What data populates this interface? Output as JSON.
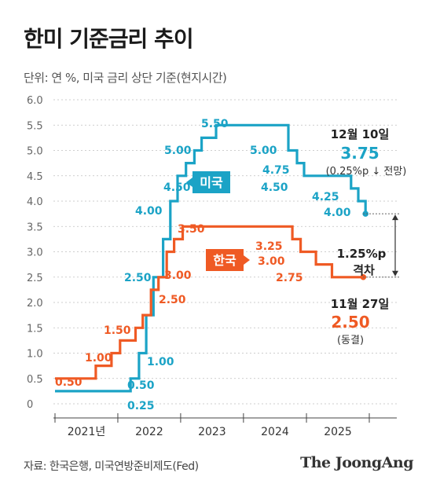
{
  "title": "한미 기준금리 추이",
  "subtitle": "단위: 연 %, 미국 금리 상단 기준(현지시간)",
  "source": "자료: 한국은행, 미국연방준비제도(Fed)",
  "publisher": "The JoongAng",
  "chart_data": {
    "type": "line",
    "step": true,
    "ylim": [
      0,
      6.0
    ],
    "y_ticks": [
      "0",
      "0.5",
      "1.0",
      "1.5",
      "2.0",
      "2.5",
      "3.0",
      "3.5",
      "4.0",
      "4.5",
      "5.0",
      "5.5",
      "6.0"
    ],
    "x_ticks": [
      "2021년",
      "2022",
      "2023",
      "2024",
      "2025"
    ],
    "grid": true,
    "x_domain": [
      "2021-01-01",
      "2026-01-01"
    ],
    "colors": {
      "us": "#1ba3c6",
      "kr": "#ef5a24",
      "text": "#333333"
    },
    "series": [
      {
        "name": "미국",
        "key": "us",
        "x": [
          "2021-01-01",
          "2022-03-16",
          "2022-05-04",
          "2022-06-15",
          "2022-07-27",
          "2022-09-21",
          "2022-11-02",
          "2022-12-14",
          "2023-02-01",
          "2023-03-22",
          "2023-05-03",
          "2023-07-26",
          "2024-09-18",
          "2024-11-07",
          "2024-12-18",
          "2025-09-17",
          "2025-10-29",
          "2025-12-10"
        ],
        "values": [
          0.25,
          0.5,
          1.0,
          1.75,
          2.5,
          3.25,
          4.0,
          4.5,
          4.75,
          5.0,
          5.25,
          5.5,
          5.0,
          4.75,
          4.5,
          4.25,
          4.0,
          3.75
        ],
        "end_date": "2025-12-10",
        "labels": [
          {
            "text": "0.25",
            "value": 0.25
          },
          {
            "text": "0.50",
            "value": 0.5
          },
          {
            "text": "1.00",
            "value": 1.0
          },
          {
            "text": "2.50",
            "value": 2.5
          },
          {
            "text": "4.00",
            "value": 4.0
          },
          {
            "text": "4.50",
            "value": 4.5
          },
          {
            "text": "5.00",
            "value": 5.0
          },
          {
            "text": "5.50",
            "value": 5.5
          },
          {
            "text": "5.00",
            "value": 5.0
          },
          {
            "text": "4.75",
            "value": 4.75
          },
          {
            "text": "4.50",
            "value": 4.5
          },
          {
            "text": "4.25",
            "value": 4.25
          },
          {
            "text": "4.00",
            "value": 4.0
          }
        ]
      },
      {
        "name": "한국",
        "key": "kr",
        "x": [
          "2021-01-01",
          "2021-08-26",
          "2021-11-25",
          "2022-01-14",
          "2022-04-14",
          "2022-05-26",
          "2022-07-13",
          "2022-08-25",
          "2022-10-12",
          "2022-11-24",
          "2023-01-13",
          "2024-10-11",
          "2024-11-28",
          "2025-02-25",
          "2025-05-29"
        ],
        "values": [
          0.5,
          0.75,
          1.0,
          1.25,
          1.5,
          1.75,
          2.25,
          2.5,
          3.0,
          3.25,
          3.5,
          3.25,
          3.0,
          2.75,
          2.5
        ],
        "end_date": "2025-11-27",
        "labels": [
          {
            "text": "0.50",
            "value": 0.5
          },
          {
            "text": "1.00",
            "value": 1.0
          },
          {
            "text": "1.50",
            "value": 1.5
          },
          {
            "text": "2.50",
            "value": 2.5
          },
          {
            "text": "3.00",
            "value": 3.0
          },
          {
            "text": "3.50",
            "value": 3.5
          },
          {
            "text": "3.25",
            "value": 3.25
          },
          {
            "text": "3.00",
            "value": 3.0
          },
          {
            "text": "2.75",
            "value": 2.75
          }
        ]
      }
    ],
    "annotations": {
      "us_date": "12월 10일",
      "us_value": "3.75",
      "us_note": "(0.25%p ↓ 전망)",
      "kr_date": "11월 27일",
      "kr_value": "2.50",
      "kr_note": "(동결)",
      "gap_value": "1.25%p",
      "gap_label": "격차"
    }
  }
}
